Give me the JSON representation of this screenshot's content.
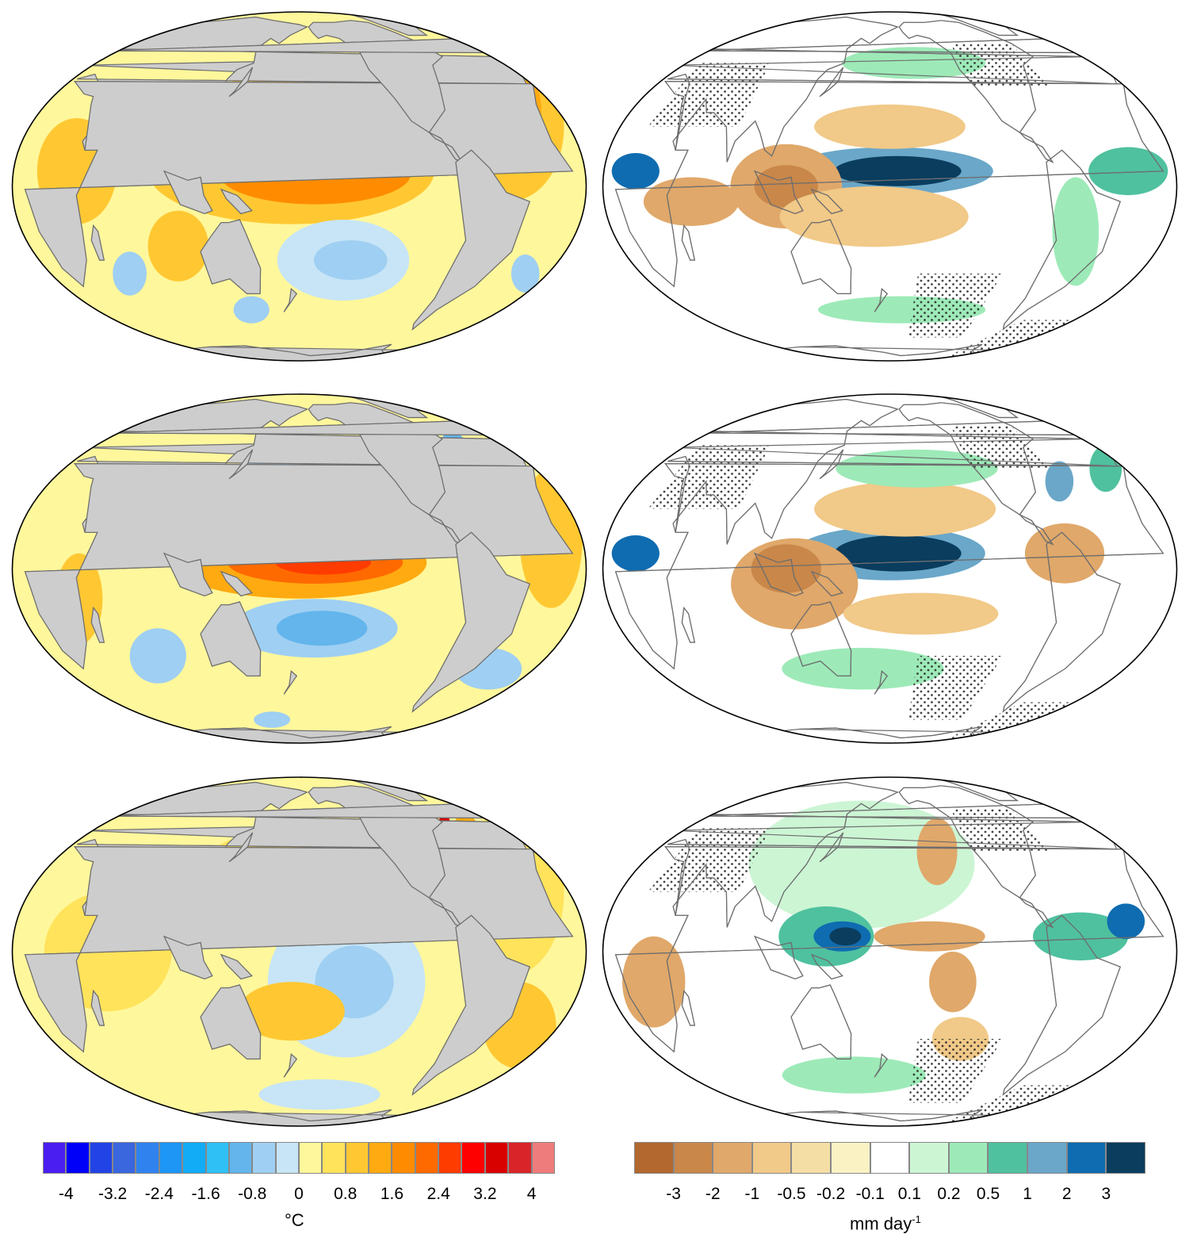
{
  "colors": {
    "land": "#cdcdcd",
    "coast": "#6e6e6e",
    "outline": "#000000",
    "stipple": "#222222"
  },
  "sst_colorbar": {
    "colors": [
      "#4a1ef0",
      "#0000f8",
      "#2244e6",
      "#3a66de",
      "#3083ee",
      "#1d96f6",
      "#12acf6",
      "#2fc0f6",
      "#63b5ec",
      "#9fcff2",
      "#c7e5f6",
      "#fff79c",
      "#ffe35a",
      "#ffc832",
      "#ffaa10",
      "#ff8c00",
      "#ff6a00",
      "#ff3c00",
      "#ff0000",
      "#d90000",
      "#d9252a",
      "#ee7c7c"
    ],
    "tick_labels": [
      "-4",
      "-3.2",
      "-2.4",
      "-1.6",
      "-0.8",
      "0",
      "0.8",
      "1.6",
      "2.4",
      "3.2",
      "4"
    ],
    "unit_label": "°C"
  },
  "precip_colorbar": {
    "colors": [
      "#b2682e",
      "#c9874a",
      "#e0a86a",
      "#f1c988",
      "#f5dea6",
      "#fbf2c4",
      "#ffffff",
      "#ccf5d4",
      "#9deab8",
      "#4fc19f",
      "#6aa7c8",
      "#0f6cb0",
      "#0a3d5e"
    ],
    "tick_labels": [
      "-3",
      "-2",
      "-1",
      "-0.5",
      "-0.2",
      "-0.1",
      "0.1",
      "0.2",
      "0.5",
      "1",
      "2",
      "3"
    ],
    "unit_label": "mm day",
    "unit_sup": "-1"
  },
  "panels": [
    {
      "name": "sst-row-1",
      "type": "sst",
      "background": "#fff79c",
      "patches": [
        {
          "lon": 175,
          "lat": 5,
          "rx": 90,
          "ry": 18,
          "color": "#ffc832"
        },
        {
          "lon": 190,
          "lat": 4,
          "rx": 60,
          "ry": 10,
          "color": "#ff8c00"
        },
        {
          "lon": 175,
          "lat": 35,
          "rx": 45,
          "ry": 14,
          "color": "#ffc832"
        },
        {
          "lon": 170,
          "lat": 38,
          "rx": 25,
          "ry": 7,
          "color": "#ffaa10"
        },
        {
          "lon": 210,
          "lat": -25,
          "rx": 45,
          "ry": 14,
          "color": "#c7e5f6"
        },
        {
          "lon": 215,
          "lat": -25,
          "rx": 25,
          "ry": 7,
          "color": "#9fcff2"
        },
        {
          "lon": 320,
          "lat": 20,
          "rx": 35,
          "ry": 30,
          "color": "#ffc832"
        },
        {
          "lon": 330,
          "lat": 25,
          "rx": 15,
          "ry": 18,
          "color": "#ffaa10"
        },
        {
          "lon": 40,
          "lat": 5,
          "rx": 25,
          "ry": 18,
          "color": "#ffc832"
        },
        {
          "lon": 60,
          "lat": -30,
          "rx": 12,
          "ry": 8,
          "color": "#9fcff2"
        },
        {
          "lon": 140,
          "lat": -45,
          "rx": 15,
          "ry": 6,
          "color": "#9fcff2"
        },
        {
          "lon": 340,
          "lat": -30,
          "rx": 10,
          "ry": 7,
          "color": "#9fcff2"
        },
        {
          "lon": 100,
          "lat": -20,
          "rx": 20,
          "ry": 12,
          "color": "#ffc832"
        },
        {
          "lon": 300,
          "lat": 35,
          "rx": 12,
          "ry": 8,
          "color": "#c7e5f6"
        }
      ]
    },
    {
      "name": "precip-row-1",
      "type": "precip",
      "background": "#ffffff",
      "patches": [
        {
          "lon": 180,
          "lat": 5,
          "rx": 65,
          "ry": 8,
          "color": "#6aa7c8"
        },
        {
          "lon": 185,
          "lat": 5,
          "rx": 40,
          "ry": 5,
          "color": "#0a3d5e"
        },
        {
          "lon": 115,
          "lat": 0,
          "rx": 35,
          "ry": 14,
          "color": "#e0a86a"
        },
        {
          "lon": 115,
          "lat": 0,
          "rx": 20,
          "ry": 7,
          "color": "#c9874a"
        },
        {
          "lon": 170,
          "lat": -10,
          "rx": 60,
          "ry": 10,
          "color": "#f1c988"
        },
        {
          "lon": 180,
          "lat": 20,
          "rx": 50,
          "ry": 8,
          "color": "#f1c988"
        },
        {
          "lon": 55,
          "lat": -5,
          "rx": 30,
          "ry": 8,
          "color": "#e0a86a"
        },
        {
          "lon": 20,
          "lat": 5,
          "rx": 15,
          "ry": 6,
          "color": "#0f6cb0"
        },
        {
          "lon": 330,
          "lat": 5,
          "rx": 25,
          "ry": 8,
          "color": "#4fc19f"
        },
        {
          "lon": 200,
          "lat": 45,
          "rx": 60,
          "ry": 8,
          "color": "#9deab8"
        },
        {
          "lon": 190,
          "lat": -45,
          "rx": 70,
          "ry": 6,
          "color": "#9deab8"
        },
        {
          "lon": 300,
          "lat": -15,
          "rx": 15,
          "ry": 18,
          "color": "#9deab8"
        }
      ]
    },
    {
      "name": "sst-row-2",
      "type": "sst",
      "background": "#fff79c",
      "patches": [
        {
          "lon": 180,
          "lat": 2,
          "rx": 80,
          "ry": 12,
          "color": "#ffaa10"
        },
        {
          "lon": 190,
          "lat": 2,
          "rx": 55,
          "ry": 7,
          "color": "#ff6a00"
        },
        {
          "lon": 195,
          "lat": 2,
          "rx": 30,
          "ry": 4,
          "color": "#ff3c00"
        },
        {
          "lon": 190,
          "lat": -20,
          "rx": 55,
          "ry": 10,
          "color": "#9fcff2"
        },
        {
          "lon": 195,
          "lat": -20,
          "rx": 30,
          "ry": 6,
          "color": "#63b5ec"
        },
        {
          "lon": 165,
          "lat": 30,
          "rx": 30,
          "ry": 15,
          "color": "#9fcff2"
        },
        {
          "lon": 300,
          "lat": 40,
          "rx": 12,
          "ry": 12,
          "color": "#63b5ec"
        },
        {
          "lon": 300,
          "lat": 40,
          "rx": 6,
          "ry": 6,
          "color": "#3083ee"
        },
        {
          "lon": 340,
          "lat": 10,
          "rx": 20,
          "ry": 25,
          "color": "#ffc832"
        },
        {
          "lon": 80,
          "lat": -30,
          "rx": 20,
          "ry": 10,
          "color": "#9fcff2"
        },
        {
          "lon": 320,
          "lat": -35,
          "rx": 25,
          "ry": 8,
          "color": "#9fcff2"
        },
        {
          "lon": 150,
          "lat": -60,
          "rx": 20,
          "ry": 5,
          "color": "#9fcff2"
        },
        {
          "lon": 40,
          "lat": -10,
          "rx": 15,
          "ry": 15,
          "color": "#ffc832"
        }
      ]
    },
    {
      "name": "precip-row-2",
      "type": "precip",
      "background": "#ffffff",
      "patches": [
        {
          "lon": 180,
          "lat": 5,
          "rx": 60,
          "ry": 9,
          "color": "#6aa7c8"
        },
        {
          "lon": 185,
          "lat": 5,
          "rx": 40,
          "ry": 6,
          "color": "#0a3d5e"
        },
        {
          "lon": 120,
          "lat": -5,
          "rx": 40,
          "ry": 15,
          "color": "#e0a86a"
        },
        {
          "lon": 115,
          "lat": 0,
          "rx": 22,
          "ry": 8,
          "color": "#c9874a"
        },
        {
          "lon": 190,
          "lat": 20,
          "rx": 60,
          "ry": 10,
          "color": "#f1c988"
        },
        {
          "lon": 200,
          "lat": -15,
          "rx": 50,
          "ry": 7,
          "color": "#f1c988"
        },
        {
          "lon": 20,
          "lat": 5,
          "rx": 15,
          "ry": 6,
          "color": "#0f6cb0"
        },
        {
          "lon": 290,
          "lat": 5,
          "rx": 25,
          "ry": 10,
          "color": "#e0a86a"
        },
        {
          "lon": 200,
          "lat": 35,
          "rx": 60,
          "ry": 8,
          "color": "#9deab8"
        },
        {
          "lon": 160,
          "lat": -35,
          "rx": 60,
          "ry": 8,
          "color": "#9deab8"
        },
        {
          "lon": 300,
          "lat": 30,
          "rx": 10,
          "ry": 8,
          "color": "#6aa7c8"
        },
        {
          "lon": 340,
          "lat": 35,
          "rx": 12,
          "ry": 10,
          "color": "#4fc19f"
        }
      ]
    },
    {
      "name": "sst-row-3",
      "type": "sst",
      "background": "#fff79c",
      "patches": [
        {
          "lon": 160,
          "lat": 25,
          "rx": 50,
          "ry": 18,
          "color": "#ffe35a"
        },
        {
          "lon": 165,
          "lat": 35,
          "rx": 25,
          "ry": 8,
          "color": "#ffc832"
        },
        {
          "lon": 210,
          "lat": -10,
          "rx": 50,
          "ry": 25,
          "color": "#c7e5f6"
        },
        {
          "lon": 215,
          "lat": -10,
          "rx": 25,
          "ry": 12,
          "color": "#9fcff2"
        },
        {
          "lon": 175,
          "lat": -20,
          "rx": 35,
          "ry": 10,
          "color": "#ffc832"
        },
        {
          "lon": 320,
          "lat": 20,
          "rx": 35,
          "ry": 35,
          "color": "#ffe35a"
        },
        {
          "lon": 310,
          "lat": 40,
          "rx": 12,
          "ry": 12,
          "color": "#ffaa10"
        },
        {
          "lon": 305,
          "lat": 47,
          "rx": 5,
          "ry": 5,
          "color": "#d90000"
        },
        {
          "lon": 60,
          "lat": 0,
          "rx": 40,
          "ry": 20,
          "color": "#ffe35a"
        },
        {
          "lon": 330,
          "lat": -25,
          "rx": 25,
          "ry": 15,
          "color": "#ffc832"
        },
        {
          "lon": 200,
          "lat": -55,
          "rx": 60,
          "ry": 8,
          "color": "#c7e5f6"
        }
      ]
    },
    {
      "name": "precip-row-3",
      "type": "precip",
      "background": "#ffffff",
      "patches": [
        {
          "lon": 160,
          "lat": 30,
          "rx": 80,
          "ry": 30,
          "color": "#ccf5d4"
        },
        {
          "lon": 140,
          "lat": 5,
          "rx": 30,
          "ry": 10,
          "color": "#4fc19f"
        },
        {
          "lon": 150,
          "lat": 5,
          "rx": 18,
          "ry": 5,
          "color": "#0f6cb0"
        },
        {
          "lon": 152,
          "lat": 5,
          "rx": 10,
          "ry": 3,
          "color": "#0a3d5e"
        },
        {
          "lon": 205,
          "lat": 5,
          "rx": 35,
          "ry": 5,
          "color": "#e0a86a"
        },
        {
          "lon": 215,
          "lat": 35,
          "rx": 15,
          "ry": 15,
          "color": "#e0a86a"
        },
        {
          "lon": 220,
          "lat": -10,
          "rx": 15,
          "ry": 10,
          "color": "#e0a86a"
        },
        {
          "lon": 30,
          "lat": -10,
          "rx": 20,
          "ry": 15,
          "color": "#e0a86a"
        },
        {
          "lon": 300,
          "lat": 5,
          "rx": 30,
          "ry": 8,
          "color": "#4fc19f"
        },
        {
          "lon": 330,
          "lat": 10,
          "rx": 12,
          "ry": 6,
          "color": "#0f6cb0"
        },
        {
          "lon": 150,
          "lat": -45,
          "rx": 60,
          "ry": 8,
          "color": "#9deab8"
        },
        {
          "lon": 230,
          "lat": -30,
          "rx": 20,
          "ry": 8,
          "color": "#f1c988"
        }
      ]
    }
  ]
}
